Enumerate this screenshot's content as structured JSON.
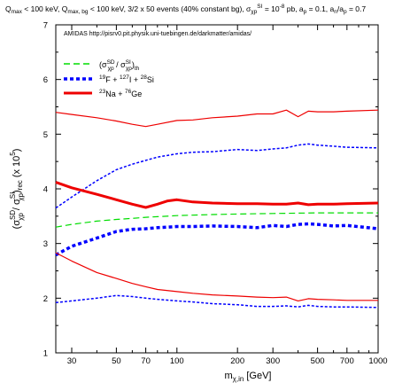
{
  "chart_data": {
    "type": "line",
    "title": "Q_max < 100 keV, Q_max, bg < 100 keV, 3/2 x 50 events (40% constant bg), σ_χp^SI = 10^-8 pb, a_p = 0.1, a_n/a_p = 0.7",
    "title_parts": {
      "p1": "Q",
      "p1_sub": "max",
      "p2": " < 100 keV, Q",
      "p2_sub": "max, bg",
      "p3": " < 100 keV, 3/2 x 50 events (40% constant bg), σ",
      "p3_sub": "χp",
      "p3_sup": "SI",
      "p4": " = 10",
      "p4_sup": "-8",
      "p5": " pb, a",
      "p5_sub": "p",
      "p6": " = 0.1, a",
      "p6_sub": "n",
      "p7": "/a",
      "p7_sub": "p",
      "p8": " = 0.7"
    },
    "subtitle": "AMIDAS   http://pisrv0.pit.physik.uni-tuebingen.de/darkmatter/amidas/",
    "xlabel": "m_χ,in [GeV]",
    "xlabel_parts": {
      "main": "m",
      "sub": "χ,in",
      "rest": " [GeV]"
    },
    "ylabel": "(σ_χp^SD / σ_χp^SI)_rec (x 10^5)",
    "ylabel_parts": {
      "p1": "(σ",
      "p1_sup": "SD",
      "p1_sub": "χp",
      "p2": " / σ",
      "p2_sup": "SI",
      "p2_sub": "χp",
      "p3": ")",
      "p3_sub": "rec",
      "p4": " (x 10",
      "p4_sup": "5",
      "p5": ")"
    },
    "xscale": "log",
    "xlim": [
      25,
      1000
    ],
    "ylim": [
      1,
      7
    ],
    "xticks": [
      30,
      50,
      70,
      100,
      200,
      300,
      500,
      700,
      1000
    ],
    "xtick_labels": [
      "30",
      "50",
      "70",
      "100",
      "200",
      "300",
      "500",
      "700",
      "1000"
    ],
    "yticks": [
      1,
      2,
      3,
      4,
      5,
      6,
      7
    ],
    "ytick_labels": [
      "1",
      "2",
      "3",
      "4",
      "5",
      "6",
      "7"
    ],
    "grid": false,
    "legend_position": "top-left",
    "legend": [
      {
        "label_main": "(σ",
        "label_sup1": "SD",
        "label_sub1": "χp",
        "label_mid": " / σ",
        "label_sup2": "SI",
        "label_sub2": "χp",
        "label_end": ")",
        "label_sub3": "th",
        "color": "#00dd00",
        "style": "dashed",
        "width": 1.5
      },
      {
        "label_pre1": "19",
        "label_a": "F + ",
        "label_pre2": "127",
        "label_b": "I + ",
        "label_pre3": "28",
        "label_c": "Si",
        "color": "#0000ff",
        "style": "dotted",
        "width": 3.5
      },
      {
        "label_pre1": "23",
        "label_a": "Na + ",
        "label_pre2": "76",
        "label_b": "Ge",
        "color": "#ee0000",
        "style": "solid",
        "width": 3
      }
    ],
    "series": [
      {
        "name": "(σ_χp^SD / σ_χp^SI)_th",
        "color": "#00dd00",
        "style": "dashed",
        "width": 1.2,
        "x": [
          25,
          30,
          40,
          50,
          60,
          70,
          80,
          100,
          150,
          200,
          300,
          400,
          500,
          700,
          1000
        ],
        "y": [
          3.3,
          3.35,
          3.41,
          3.44,
          3.46,
          3.48,
          3.49,
          3.51,
          3.53,
          3.54,
          3.55,
          3.555,
          3.56,
          3.56,
          3.56
        ]
      },
      {
        "name": "19F + 127I + 28Si (median)",
        "color": "#0000ff",
        "style": "dotted",
        "width": 3.5,
        "x": [
          25,
          30,
          40,
          50,
          60,
          70,
          80,
          90,
          100,
          120,
          150,
          200,
          250,
          300,
          350,
          400,
          450,
          500,
          600,
          700,
          1000
        ],
        "y": [
          2.79,
          2.95,
          3.1,
          3.22,
          3.26,
          3.27,
          3.29,
          3.3,
          3.31,
          3.31,
          3.32,
          3.31,
          3.29,
          3.33,
          3.31,
          3.35,
          3.36,
          3.35,
          3.32,
          3.33,
          3.27
        ]
      },
      {
        "name": "19F + 127I + 28Si (upper)",
        "color": "#0000ff",
        "style": "dotted",
        "width": 1.5,
        "x": [
          25,
          30,
          40,
          50,
          60,
          70,
          80,
          100,
          120,
          150,
          200,
          250,
          300,
          350,
          400,
          450,
          500,
          600,
          700,
          1000
        ],
        "y": [
          3.65,
          3.85,
          4.15,
          4.35,
          4.45,
          4.52,
          4.58,
          4.64,
          4.67,
          4.68,
          4.72,
          4.7,
          4.73,
          4.75,
          4.8,
          4.82,
          4.8,
          4.78,
          4.76,
          4.75
        ]
      },
      {
        "name": "19F + 127I + 28Si (lower)",
        "color": "#0000ff",
        "style": "dotted",
        "width": 1.5,
        "x": [
          25,
          30,
          40,
          50,
          60,
          70,
          80,
          100,
          120,
          150,
          200,
          250,
          300,
          350,
          400,
          450,
          500,
          600,
          700,
          1000
        ],
        "y": [
          1.92,
          1.95,
          2.0,
          2.05,
          2.03,
          2.0,
          1.98,
          1.95,
          1.93,
          1.9,
          1.88,
          1.85,
          1.85,
          1.86,
          1.84,
          1.87,
          1.85,
          1.84,
          1.84,
          1.83
        ]
      },
      {
        "name": "23Na + 76Ge (median)",
        "color": "#ee0000",
        "style": "solid",
        "width": 3,
        "x": [
          25,
          30,
          40,
          50,
          60,
          70,
          80,
          90,
          100,
          120,
          150,
          200,
          250,
          300,
          350,
          400,
          450,
          500,
          600,
          700,
          1000
        ],
        "y": [
          4.12,
          4.02,
          3.9,
          3.8,
          3.72,
          3.66,
          3.72,
          3.78,
          3.8,
          3.76,
          3.74,
          3.73,
          3.73,
          3.72,
          3.72,
          3.74,
          3.71,
          3.72,
          3.72,
          3.73,
          3.74
        ]
      },
      {
        "name": "23Na + 76Ge (upper)",
        "color": "#ee0000",
        "style": "solid",
        "width": 1.2,
        "x": [
          25,
          30,
          40,
          50,
          60,
          70,
          80,
          100,
          120,
          150,
          200,
          250,
          300,
          350,
          400,
          450,
          500,
          600,
          700,
          1000
        ],
        "y": [
          5.4,
          5.36,
          5.3,
          5.24,
          5.18,
          5.14,
          5.18,
          5.25,
          5.26,
          5.3,
          5.33,
          5.37,
          5.37,
          5.44,
          5.32,
          5.42,
          5.41,
          5.41,
          5.42,
          5.44
        ]
      },
      {
        "name": "23Na + 76Ge (lower)",
        "color": "#ee0000",
        "style": "solid",
        "width": 1.2,
        "x": [
          25,
          30,
          40,
          50,
          60,
          70,
          80,
          100,
          120,
          150,
          200,
          250,
          300,
          350,
          400,
          450,
          500,
          600,
          700,
          1000
        ],
        "y": [
          2.83,
          2.68,
          2.47,
          2.36,
          2.27,
          2.21,
          2.16,
          2.12,
          2.09,
          2.06,
          2.04,
          2.02,
          2.01,
          2.02,
          1.95,
          1.99,
          1.98,
          1.97,
          1.96,
          1.96
        ]
      }
    ]
  }
}
